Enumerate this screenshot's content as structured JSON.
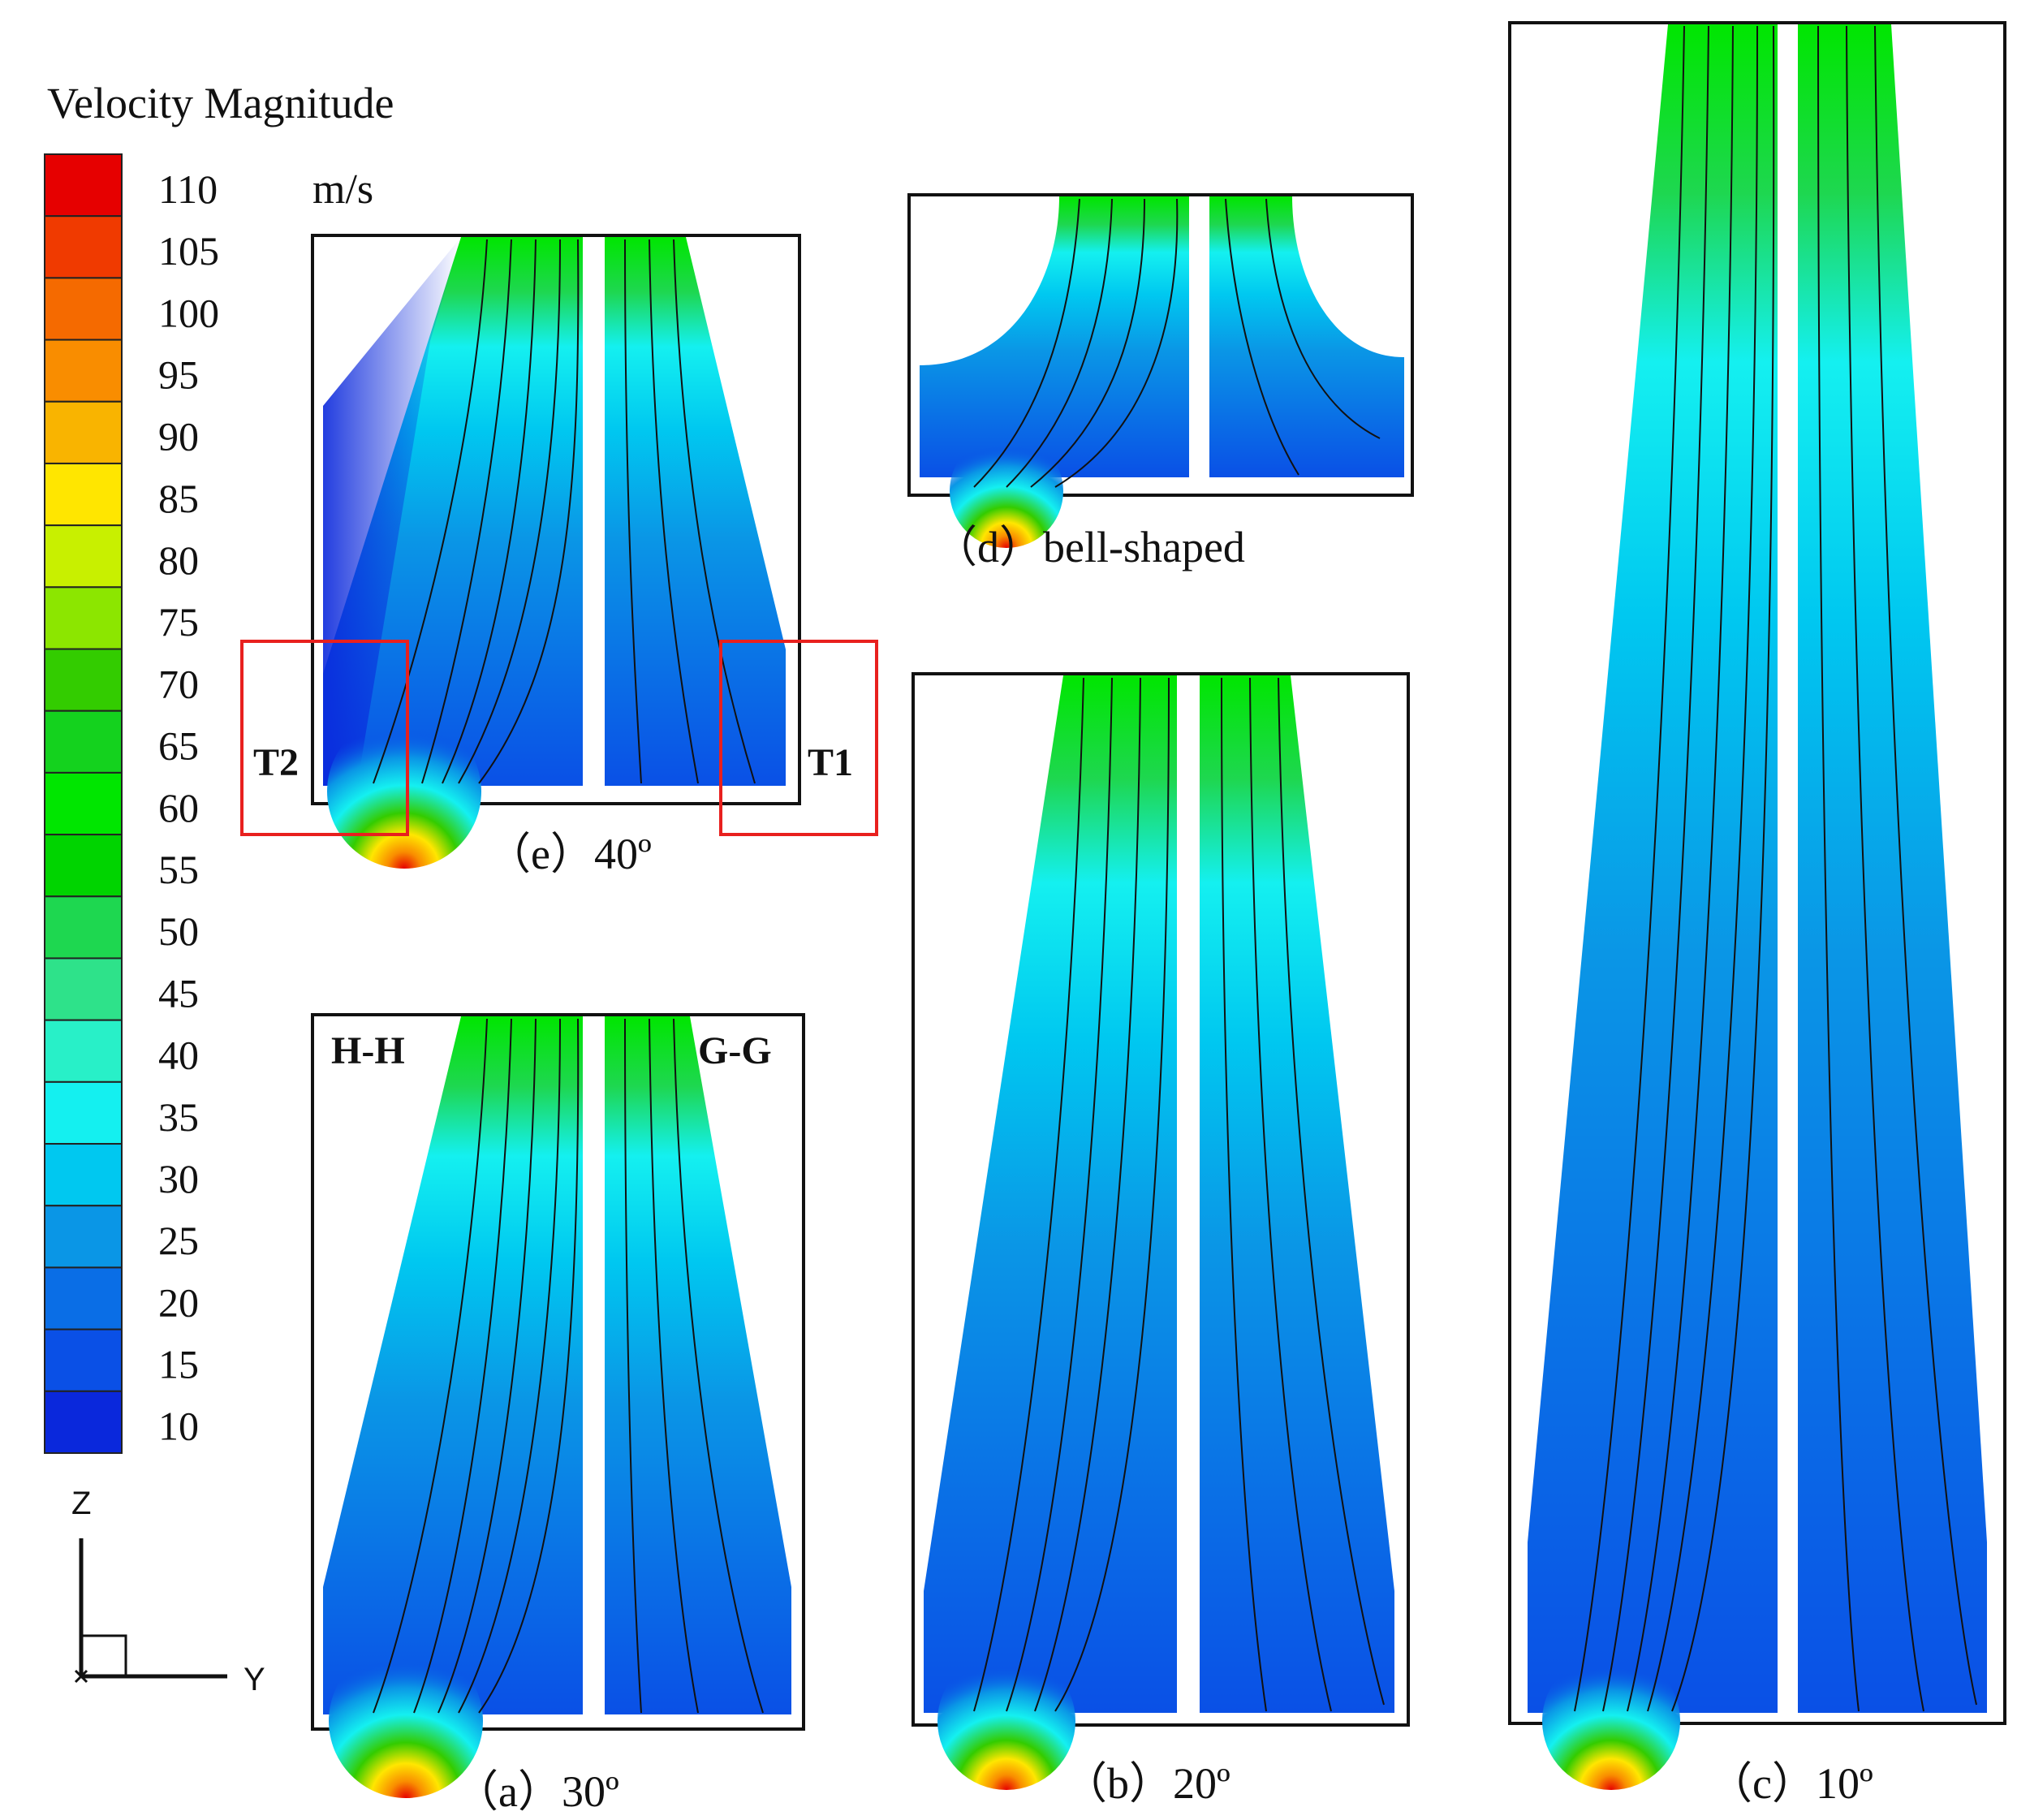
{
  "legend": {
    "title": "Velocity Magnitude",
    "unit": "m/s",
    "levels": [
      "110",
      "105",
      "100",
      "95",
      "90",
      "85",
      "80",
      "75",
      "70",
      "65",
      "60",
      "55",
      "50",
      "45",
      "40",
      "35",
      "30",
      "25",
      "20",
      "15",
      "10"
    ],
    "colors": [
      "#e60000",
      "#f03a00",
      "#f56a00",
      "#f98d00",
      "#f9b400",
      "#ffe600",
      "#c8f000",
      "#8ce600",
      "#33cc00",
      "#14d21e",
      "#00e600",
      "#00d400",
      "#1ed750",
      "#2ee28a",
      "#28f0c8",
      "#14f0f0",
      "#00c8f0",
      "#0a96e6",
      "#0a6ee6",
      "#0a50e6",
      "#0a28dc"
    ]
  },
  "axes": {
    "z": "Z",
    "y": "Y"
  },
  "panels": {
    "e": {
      "caption": "（e）40º"
    },
    "d": {
      "caption": "（d）bell-shaped"
    },
    "a": {
      "caption": "（a）30º",
      "left_label": "H-H",
      "right_label": "G-G"
    },
    "b": {
      "caption": "（b）20º"
    },
    "c": {
      "caption": "（c）10º"
    }
  },
  "highlights": {
    "t1": "T1",
    "t2": "T2",
    "color": "#e8201e"
  }
}
